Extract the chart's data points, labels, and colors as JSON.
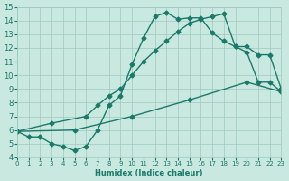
{
  "xlabel": "Humidex (Indice chaleur)",
  "xlim": [
    0,
    23
  ],
  "ylim": [
    4,
    15
  ],
  "yticks": [
    4,
    5,
    6,
    7,
    8,
    9,
    10,
    11,
    12,
    13,
    14,
    15
  ],
  "xticks": [
    0,
    1,
    2,
    3,
    4,
    5,
    6,
    7,
    8,
    9,
    10,
    11,
    12,
    13,
    14,
    15,
    16,
    17,
    18,
    19,
    20,
    21,
    22,
    23
  ],
  "bg_color": "#c8e8e0",
  "grid_color": "#a0c8c0",
  "line_color": "#1a7a6a",
  "line1_x": [
    0,
    1,
    2,
    3,
    4,
    5,
    6,
    7,
    8,
    9,
    10,
    11,
    12,
    13,
    14,
    15,
    16,
    17,
    18,
    19,
    20,
    21,
    22,
    23
  ],
  "line1_y": [
    5.9,
    5.5,
    5.5,
    5.0,
    4.8,
    4.5,
    4.8,
    6.0,
    7.8,
    8.5,
    10.8,
    12.7,
    14.3,
    14.6,
    14.1,
    14.2,
    14.2,
    13.1,
    12.5,
    12.1,
    11.7,
    9.5,
    9.5,
    8.8
  ],
  "line2_x": [
    0,
    3,
    6,
    7,
    8,
    9,
    10,
    11,
    12,
    13,
    14,
    15,
    16,
    17,
    18,
    19,
    20,
    21,
    22,
    23
  ],
  "line2_y": [
    5.9,
    6.5,
    7.0,
    7.8,
    8.5,
    9.0,
    10.0,
    11.0,
    11.8,
    12.5,
    13.2,
    13.8,
    14.1,
    14.3,
    14.5,
    12.1,
    12.1,
    11.5,
    11.5,
    9.0
  ],
  "line3_x": [
    0,
    5,
    10,
    15,
    20,
    23
  ],
  "line3_y": [
    5.9,
    6.0,
    7.0,
    8.2,
    9.5,
    8.8
  ]
}
